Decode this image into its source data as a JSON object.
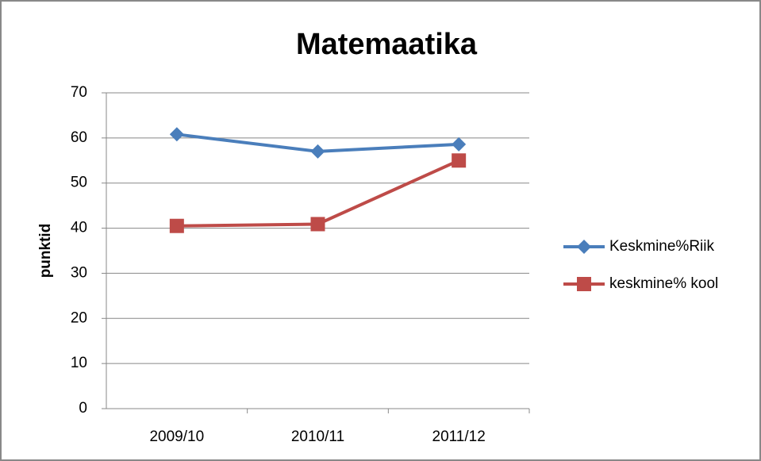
{
  "chart_data": {
    "type": "line",
    "title": "Matemaatika",
    "y_label": "punktid",
    "categories": [
      "2009/10",
      "2010/11",
      "2011/12"
    ],
    "series": [
      {
        "name": "Keskmine%Riik",
        "color": "#4a7ebb",
        "marker": "diamond",
        "values": [
          60.8,
          57,
          58.6
        ]
      },
      {
        "name": "keskmine% kool",
        "color": "#be4b48",
        "marker": "square",
        "values": [
          40.5,
          40.9,
          55
        ]
      }
    ],
    "ylim": [
      0,
      70
    ],
    "yticks": [
      0,
      10,
      20,
      30,
      40,
      50,
      60,
      70
    ],
    "grid": true,
    "legend": "right"
  }
}
